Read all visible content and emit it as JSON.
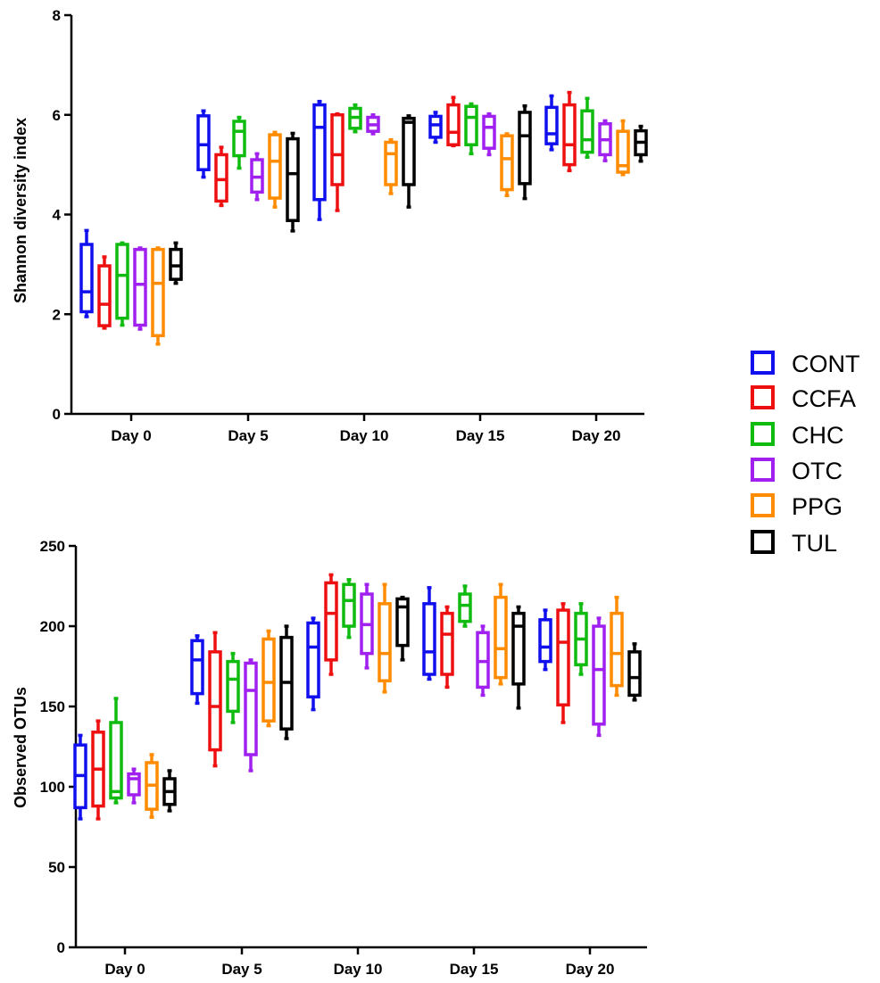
{
  "legend": [
    {
      "name": "CONT",
      "color": "#1010ee"
    },
    {
      "name": "CCFA",
      "color": "#ee1010"
    },
    {
      "name": "CHC",
      "color": "#10bb10"
    },
    {
      "name": "OTC",
      "color": "#a020f0"
    },
    {
      "name": "PPG",
      "color": "#ff8c00"
    },
    {
      "name": "TUL",
      "color": "#000000"
    }
  ],
  "chart_data": [
    {
      "type": "box",
      "title": "",
      "xlabel": "",
      "ylabel": "Shannon diversity index",
      "ylim": [
        0,
        8
      ],
      "yticks": [
        "0",
        "2",
        "4",
        "6",
        "8"
      ],
      "categories": [
        "Day 0",
        "Day 5",
        "Day 10",
        "Day 15",
        "Day 20"
      ],
      "series": [
        {
          "name": "CONT",
          "values": [
            {
              "min": 1.95,
              "q1": 2.05,
              "median": 2.45,
              "q3": 3.4,
              "max": 3.68
            },
            {
              "min": 4.75,
              "q1": 4.9,
              "median": 5.4,
              "q3": 5.98,
              "max": 6.08
            },
            {
              "min": 3.9,
              "q1": 4.3,
              "median": 5.75,
              "q3": 6.2,
              "max": 6.27
            },
            {
              "min": 5.45,
              "q1": 5.55,
              "median": 5.8,
              "q3": 5.97,
              "max": 6.05
            },
            {
              "min": 5.3,
              "q1": 5.42,
              "median": 5.62,
              "q3": 6.15,
              "max": 6.38
            }
          ]
        },
        {
          "name": "CCFA",
          "values": [
            {
              "min": 1.72,
              "q1": 1.77,
              "median": 2.2,
              "q3": 2.97,
              "max": 3.15
            },
            {
              "min": 4.18,
              "q1": 4.27,
              "median": 4.7,
              "q3": 5.2,
              "max": 5.35
            },
            {
              "min": 4.08,
              "q1": 4.6,
              "median": 5.2,
              "q3": 6.0,
              "max": 6.02
            },
            {
              "min": 5.38,
              "q1": 5.4,
              "median": 5.65,
              "q3": 6.2,
              "max": 6.35
            },
            {
              "min": 4.88,
              "q1": 5.0,
              "median": 5.4,
              "q3": 6.2,
              "max": 6.45
            }
          ]
        },
        {
          "name": "CHC",
          "values": [
            {
              "min": 1.78,
              "q1": 1.92,
              "median": 2.78,
              "q3": 3.4,
              "max": 3.43
            },
            {
              "min": 4.93,
              "q1": 5.18,
              "median": 5.67,
              "q3": 5.87,
              "max": 5.95
            },
            {
              "min": 5.66,
              "q1": 5.73,
              "median": 5.95,
              "q3": 6.13,
              "max": 6.2
            },
            {
              "min": 5.22,
              "q1": 5.4,
              "median": 5.95,
              "q3": 6.17,
              "max": 6.22
            },
            {
              "min": 5.15,
              "q1": 5.25,
              "median": 5.5,
              "q3": 6.08,
              "max": 6.33
            }
          ]
        },
        {
          "name": "OTC",
          "values": [
            {
              "min": 1.7,
              "q1": 1.78,
              "median": 2.6,
              "q3": 3.3,
              "max": 3.33
            },
            {
              "min": 4.3,
              "q1": 4.45,
              "median": 4.75,
              "q3": 5.1,
              "max": 5.22
            },
            {
              "min": 5.62,
              "q1": 5.67,
              "median": 5.8,
              "q3": 5.95,
              "max": 6.0
            },
            {
              "min": 5.2,
              "q1": 5.33,
              "median": 5.75,
              "q3": 5.97,
              "max": 6.02
            },
            {
              "min": 5.08,
              "q1": 5.2,
              "median": 5.5,
              "q3": 5.82,
              "max": 5.88
            }
          ]
        },
        {
          "name": "PPG",
          "values": [
            {
              "min": 1.4,
              "q1": 1.57,
              "median": 2.62,
              "q3": 3.3,
              "max": 3.33
            },
            {
              "min": 4.15,
              "q1": 4.33,
              "median": 5.07,
              "q3": 5.6,
              "max": 5.65
            },
            {
              "min": 4.42,
              "q1": 4.6,
              "median": 5.22,
              "q3": 5.45,
              "max": 5.5
            },
            {
              "min": 4.38,
              "q1": 4.5,
              "median": 5.12,
              "q3": 5.58,
              "max": 5.62
            },
            {
              "min": 4.8,
              "q1": 4.85,
              "median": 4.98,
              "q3": 5.67,
              "max": 5.88
            }
          ]
        },
        {
          "name": "TUL",
          "values": [
            {
              "min": 2.62,
              "q1": 2.7,
              "median": 2.97,
              "q3": 3.3,
              "max": 3.43
            },
            {
              "min": 3.67,
              "q1": 3.88,
              "median": 4.82,
              "q3": 5.52,
              "max": 5.63
            },
            {
              "min": 4.15,
              "q1": 4.6,
              "median": 5.85,
              "q3": 5.93,
              "max": 5.98
            },
            {
              "min": 4.32,
              "q1": 4.62,
              "median": 5.58,
              "q3": 6.05,
              "max": 6.18
            },
            {
              "min": 5.07,
              "q1": 5.2,
              "median": 5.45,
              "q3": 5.68,
              "max": 5.77
            }
          ]
        }
      ]
    },
    {
      "type": "box",
      "title": "",
      "xlabel": "",
      "ylabel": "Observed OTUs",
      "ylim": [
        0,
        250
      ],
      "yticks": [
        "0",
        "50",
        "100",
        "150",
        "200",
        "250"
      ],
      "categories": [
        "Day 0",
        "Day 5",
        "Day 10",
        "Day 15",
        "Day 20"
      ],
      "series": [
        {
          "name": "CONT",
          "values": [
            {
              "min": 80,
              "q1": 87,
              "median": 107,
              "q3": 126,
              "max": 132
            },
            {
              "min": 152,
              "q1": 158,
              "median": 179,
              "q3": 191,
              "max": 194
            },
            {
              "min": 148,
              "q1": 156,
              "median": 187,
              "q3": 202,
              "max": 205
            },
            {
              "min": 167,
              "q1": 170,
              "median": 184,
              "q3": 214,
              "max": 224
            },
            {
              "min": 173,
              "q1": 178,
              "median": 187,
              "q3": 204,
              "max": 210
            }
          ]
        },
        {
          "name": "CCFA",
          "values": [
            {
              "min": 80,
              "q1": 88,
              "median": 111,
              "q3": 134,
              "max": 141
            },
            {
              "min": 113,
              "q1": 123,
              "median": 150,
              "q3": 184,
              "max": 196
            },
            {
              "min": 170,
              "q1": 179,
              "median": 208,
              "q3": 227,
              "max": 232
            },
            {
              "min": 162,
              "q1": 170,
              "median": 195,
              "q3": 208,
              "max": 212
            },
            {
              "min": 140,
              "q1": 151,
              "median": 190,
              "q3": 210,
              "max": 214
            }
          ]
        },
        {
          "name": "CHC",
          "values": [
            {
              "min": 90,
              "q1": 93,
              "median": 97,
              "q3": 140,
              "max": 155
            },
            {
              "min": 140,
              "q1": 147,
              "median": 167,
              "q3": 178,
              "max": 183
            },
            {
              "min": 193,
              "q1": 200,
              "median": 216,
              "q3": 226,
              "max": 229
            },
            {
              "min": 200,
              "q1": 203,
              "median": 213,
              "q3": 220,
              "max": 225
            },
            {
              "min": 170,
              "q1": 176,
              "median": 192,
              "q3": 208,
              "max": 214
            }
          ]
        },
        {
          "name": "OTC",
          "values": [
            {
              "min": 90,
              "q1": 95,
              "median": 105,
              "q3": 108,
              "max": 111
            },
            {
              "min": 110,
              "q1": 120,
              "median": 160,
              "q3": 177,
              "max": 179
            },
            {
              "min": 174,
              "q1": 183,
              "median": 201,
              "q3": 220,
              "max": 226
            },
            {
              "min": 157,
              "q1": 162,
              "median": 178,
              "q3": 196,
              "max": 200
            },
            {
              "min": 132,
              "q1": 139,
              "median": 173,
              "q3": 200,
              "max": 205
            }
          ]
        },
        {
          "name": "PPG",
          "values": [
            {
              "min": 81,
              "q1": 86,
              "median": 101,
              "q3": 115,
              "max": 120
            },
            {
              "min": 138,
              "q1": 141,
              "median": 165,
              "q3": 192,
              "max": 197
            },
            {
              "min": 159,
              "q1": 166,
              "median": 183,
              "q3": 214,
              "max": 226
            },
            {
              "min": 164,
              "q1": 168,
              "median": 186,
              "q3": 218,
              "max": 226
            },
            {
              "min": 157,
              "q1": 163,
              "median": 183,
              "q3": 208,
              "max": 218
            }
          ]
        },
        {
          "name": "TUL",
          "values": [
            {
              "min": 85,
              "q1": 89,
              "median": 97,
              "q3": 105,
              "max": 110
            },
            {
              "min": 130,
              "q1": 136,
              "median": 165,
              "q3": 193,
              "max": 200
            },
            {
              "min": 179,
              "q1": 188,
              "median": 212,
              "q3": 217,
              "max": 218
            },
            {
              "min": 149,
              "q1": 164,
              "median": 200,
              "q3": 208,
              "max": 212
            },
            {
              "min": 154,
              "q1": 157,
              "median": 168,
              "q3": 184,
              "max": 189
            }
          ]
        }
      ]
    }
  ]
}
